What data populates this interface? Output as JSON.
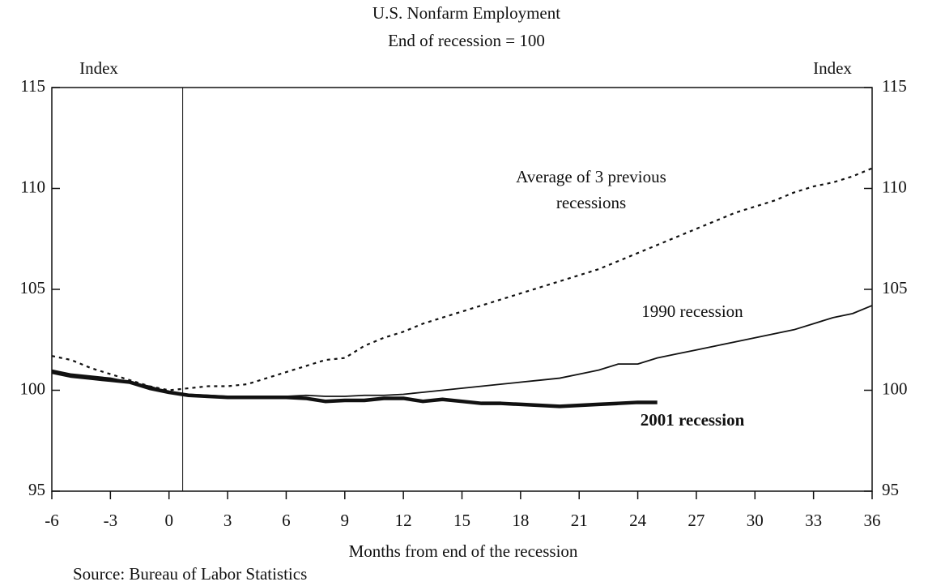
{
  "chart_data": {
    "type": "line",
    "title": "U.S. Nonfarm Employment",
    "subtitle": "End of recession = 100",
    "y_label": "Index",
    "y2_label": "Index",
    "x_label": "Months from end of the recession",
    "source": "Source: Bureau of Labor Statistics",
    "x": [
      -6,
      -5,
      -4,
      -3,
      -2,
      -1,
      0,
      1,
      2,
      3,
      4,
      5,
      6,
      7,
      8,
      9,
      10,
      11,
      12,
      13,
      14,
      15,
      16,
      17,
      18,
      19,
      20,
      21,
      22,
      23,
      24,
      25,
      26,
      27,
      28,
      29,
      30,
      31,
      32,
      33,
      34,
      35,
      36
    ],
    "series": [
      {
        "name": "Average of 3 previous recessions",
        "color": "#111111",
        "style": "dotted",
        "values": [
          101.7,
          101.5,
          101.1,
          100.8,
          100.5,
          100.2,
          100.0,
          100.1,
          100.2,
          100.2,
          100.3,
          100.6,
          100.9,
          101.2,
          101.5,
          101.6,
          102.2,
          102.6,
          102.9,
          103.3,
          103.6,
          103.9,
          104.2,
          104.5,
          104.8,
          105.1,
          105.4,
          105.7,
          106.0,
          106.4,
          106.8,
          107.2,
          107.6,
          108.0,
          108.4,
          108.8,
          109.1,
          109.4,
          109.8,
          110.1,
          110.3,
          110.6,
          111.0
        ]
      },
      {
        "name": "1990 recession",
        "color": "#111111",
        "style": "thin",
        "values": [
          101.0,
          100.8,
          100.7,
          100.6,
          100.4,
          100.2,
          99.9,
          99.8,
          99.75,
          99.7,
          99.7,
          99.7,
          99.7,
          99.75,
          99.7,
          99.7,
          99.75,
          99.75,
          99.8,
          99.9,
          100.0,
          100.1,
          100.2,
          100.3,
          100.4,
          100.5,
          100.6,
          100.8,
          101.0,
          101.3,
          101.3,
          101.6,
          101.8,
          102.0,
          102.2,
          102.4,
          102.6,
          102.8,
          103.0,
          103.3,
          103.6,
          103.8,
          104.2
        ]
      },
      {
        "name": "2001 recession",
        "color": "#111111",
        "style": "thick",
        "values": [
          100.9,
          100.7,
          100.6,
          100.5,
          100.4,
          100.1,
          99.9,
          99.75,
          99.7,
          99.65,
          99.65,
          99.65,
          99.65,
          99.6,
          99.45,
          99.5,
          99.5,
          99.6,
          99.6,
          99.45,
          99.55,
          99.45,
          99.35,
          99.35,
          99.3,
          99.25,
          99.2,
          99.25,
          99.3,
          99.35,
          99.4,
          99.4,
          null,
          null,
          null,
          null,
          null,
          null,
          null,
          null,
          null,
          null,
          null
        ]
      }
    ],
    "vline": 0.7,
    "xlim": [
      -6,
      36
    ],
    "xticks": [
      -6,
      -3,
      0,
      3,
      6,
      9,
      12,
      15,
      18,
      21,
      24,
      27,
      30,
      33,
      36
    ],
    "ylim": [
      95,
      115
    ],
    "yticks": [
      95,
      100,
      105,
      110,
      115
    ],
    "y2lim": [
      95,
      115
    ],
    "y2ticks": [
      95,
      100,
      105,
      110,
      115
    ]
  }
}
